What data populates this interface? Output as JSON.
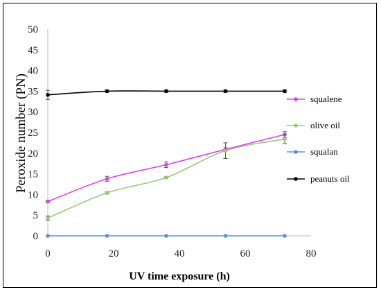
{
  "chart_data": {
    "type": "line",
    "title": "",
    "xlabel": "UV time exposure (h)",
    "ylabel": "Peroxide number (PN)",
    "xlim": [
      0,
      80
    ],
    "ylim": [
      0,
      50
    ],
    "xticks": [
      0,
      20,
      40,
      60,
      80
    ],
    "yticks": [
      0,
      5,
      10,
      15,
      20,
      25,
      30,
      35,
      40,
      45,
      50
    ],
    "grid": false,
    "legend_position": "right",
    "series": [
      {
        "name": "squalene",
        "color": "#e040e8",
        "x": [
          0,
          18,
          36,
          54,
          72
        ],
        "y": [
          8.3,
          13.8,
          17.2,
          20.9,
          24.5
        ],
        "error": [
          0.3,
          0.6,
          0.7,
          0.4,
          0.7
        ]
      },
      {
        "name": "olive oil",
        "color": "#9bc97a",
        "x": [
          0,
          18,
          36,
          54,
          72
        ],
        "y": [
          4.3,
          10.4,
          14.1,
          20.6,
          23.4
        ],
        "error": [
          0.5,
          0.3,
          0.2,
          1.9,
          1.1
        ]
      },
      {
        "name": "squalan",
        "color": "#5b8fd8",
        "x": [
          0,
          18,
          36,
          54,
          72
        ],
        "y": [
          0,
          0,
          0,
          0,
          0
        ],
        "error": [
          0,
          0,
          0,
          0,
          0
        ]
      },
      {
        "name": "peanuts oil",
        "color": "#000000",
        "x": [
          0,
          18,
          36,
          54,
          72
        ],
        "y": [
          34.1,
          35.0,
          35.0,
          35.0,
          35.0
        ],
        "error": [
          1.1,
          0.3,
          0.3,
          0.3,
          0.3
        ]
      }
    ]
  }
}
